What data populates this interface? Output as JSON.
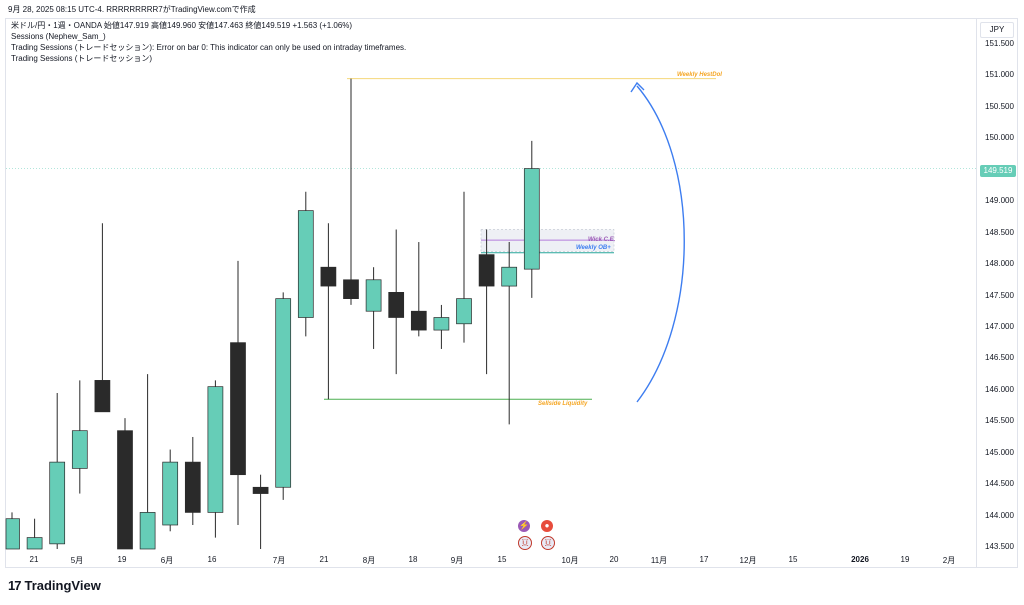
{
  "header": {
    "top_text": "9月 28, 2025 08:15 UTC-4.  RRRRRRRRR7がTradingView.comで作成"
  },
  "legend": {
    "symbol_line": "米ドル/円・1週・OANDA  始値147.919  高値149.960  安値147.463  終値149.519  +1.563 (+1.06%)",
    "line2": "Sessions (Nephew_Sam_)",
    "line3": "Trading Sessions (トレードセッション): Error on bar 0: This indicator can only be used on intraday timeframes.",
    "line4": "Trading Sessions (トレードセッション)"
  },
  "price_axis": {
    "currency": "JPY",
    "ticks": [
      "151.500",
      "151.000",
      "150.500",
      "150.000",
      "149.000",
      "148.500",
      "148.000",
      "147.500",
      "147.000",
      "146.500",
      "146.000",
      "145.500",
      "145.000",
      "144.500",
      "144.000",
      "143.500"
    ],
    "last_price": "149.519"
  },
  "time_axis": {
    "ticks": [
      "21",
      "5月",
      "19",
      "6月",
      "16",
      "7月",
      "21",
      "8月",
      "18",
      "9月",
      "15",
      "10月",
      "20",
      "11月",
      "17",
      "12月",
      "15",
      "2026",
      "19",
      "2月"
    ]
  },
  "annotations": {
    "weekly_high": "Weekly HestDol",
    "wick_ce": "Wick C.E.",
    "weekly_ob": "Weekly OB+",
    "sellside": "Sellside Liquidity"
  },
  "colors": {
    "bull": "#66cdb7",
    "bear": "#2a2a2a",
    "weekly_high_line": "#f5d77a",
    "wick_ce_line": "#b57edc",
    "weekly_ob_line": "#26a69a",
    "sellside_line": "#4caf50",
    "arrow": "#3d7df0",
    "label_orange": "#f5a623",
    "label_purple": "#9b59b6",
    "label_blue": "#3d7df0"
  },
  "branding": {
    "logo_text": "TradingView",
    "logo_mark": "17"
  },
  "chart_data": {
    "type": "candlestick",
    "xlabel": "",
    "ylabel": "",
    "ylim": [
      143.45,
      151.8
    ],
    "candles": [
      {
        "o": 143.45,
        "h": 144.05,
        "l": 143.45,
        "c": 143.95
      },
      {
        "o": 143.45,
        "h": 143.95,
        "l": 143.45,
        "c": 143.65
      },
      {
        "o": 143.55,
        "h": 145.95,
        "l": 143.45,
        "c": 144.85
      },
      {
        "o": 144.75,
        "h": 146.15,
        "l": 144.35,
        "c": 145.35
      },
      {
        "o": 146.15,
        "h": 148.65,
        "l": 145.65,
        "c": 145.65
      },
      {
        "o": 145.35,
        "h": 145.55,
        "l": 143.45,
        "c": 143.45
      },
      {
        "o": 143.45,
        "h": 146.25,
        "l": 143.45,
        "c": 144.05
      },
      {
        "o": 143.85,
        "h": 145.05,
        "l": 143.75,
        "c": 144.85
      },
      {
        "o": 144.85,
        "h": 145.25,
        "l": 143.85,
        "c": 144.05
      },
      {
        "o": 144.05,
        "h": 146.15,
        "l": 143.65,
        "c": 146.05
      },
      {
        "o": 146.75,
        "h": 148.05,
        "l": 143.85,
        "c": 144.65
      },
      {
        "o": 144.45,
        "h": 144.65,
        "l": 143.45,
        "c": 144.35
      },
      {
        "o": 144.45,
        "h": 147.55,
        "l": 144.25,
        "c": 147.45
      },
      {
        "o": 147.15,
        "h": 149.15,
        "l": 146.85,
        "c": 148.85
      },
      {
        "o": 147.95,
        "h": 148.65,
        "l": 145.85,
        "c": 147.65
      },
      {
        "o": 147.75,
        "h": 150.95,
        "l": 147.35,
        "c": 147.45
      },
      {
        "o": 147.25,
        "h": 147.95,
        "l": 146.65,
        "c": 147.75
      },
      {
        "o": 147.55,
        "h": 148.55,
        "l": 146.25,
        "c": 147.15
      },
      {
        "o": 147.25,
        "h": 148.35,
        "l": 146.85,
        "c": 146.95
      },
      {
        "o": 146.95,
        "h": 147.35,
        "l": 146.65,
        "c": 147.15
      },
      {
        "o": 147.05,
        "h": 149.15,
        "l": 146.75,
        "c": 147.45
      },
      {
        "o": 148.15,
        "h": 148.55,
        "l": 146.25,
        "c": 147.65
      },
      {
        "o": 147.65,
        "h": 148.35,
        "l": 145.45,
        "c": 147.95
      },
      {
        "o": 147.919,
        "h": 149.96,
        "l": 147.463,
        "c": 149.519
      }
    ]
  }
}
